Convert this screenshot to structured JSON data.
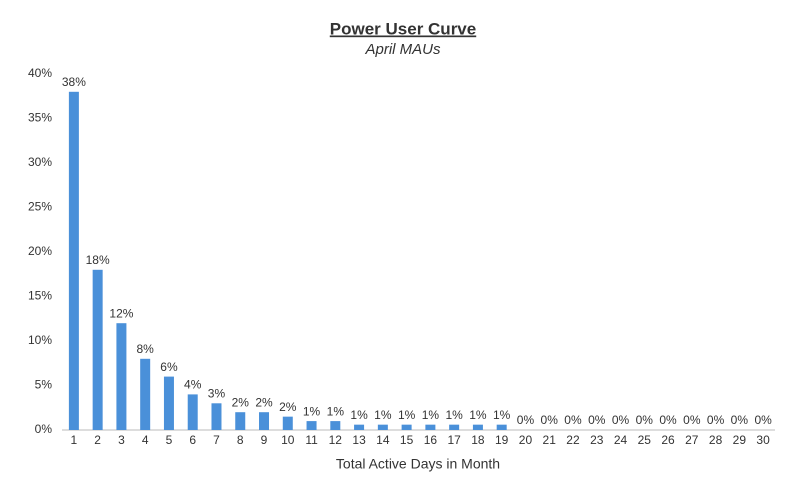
{
  "chart_data": {
    "type": "bar",
    "title": "Power User Curve",
    "subtitle": "April MAUs",
    "x_label": "Total Active Days in Month",
    "categories": [
      "1",
      "2",
      "3",
      "4",
      "5",
      "6",
      "7",
      "8",
      "9",
      "10",
      "11",
      "12",
      "13",
      "14",
      "15",
      "16",
      "17",
      "18",
      "19",
      "20",
      "21",
      "22",
      "23",
      "24",
      "25",
      "26",
      "27",
      "28",
      "29",
      "30"
    ],
    "values": [
      38,
      18,
      12,
      8,
      6,
      4,
      3,
      2,
      2,
      1.5,
      1,
      1,
      0.6,
      0.6,
      0.6,
      0.6,
      0.6,
      0.6,
      0.6,
      0,
      0,
      0,
      0,
      0,
      0,
      0,
      0,
      0,
      0,
      0
    ],
    "value_labels": [
      "38%",
      "18%",
      "12%",
      "8%",
      "6%",
      "4%",
      "3%",
      "2%",
      "2%",
      "2%",
      "1%",
      "1%",
      "1%",
      "1%",
      "1%",
      "1%",
      "1%",
      "1%",
      "1%",
      "0%",
      "0%",
      "0%",
      "0%",
      "0%",
      "0%",
      "0%",
      "0%",
      "0%",
      "0%",
      "0%"
    ],
    "color": "#4a90d9",
    "ylim": [
      0,
      40
    ],
    "yticks": [
      {
        "value": 0,
        "label": "0%"
      },
      {
        "value": 5,
        "label": "5%"
      },
      {
        "value": 10,
        "label": "10%"
      },
      {
        "value": 15,
        "label": "15%"
      },
      {
        "value": 20,
        "label": "20%"
      },
      {
        "value": 25,
        "label": "25%"
      },
      {
        "value": 30,
        "label": "30%"
      },
      {
        "value": 35,
        "label": "35%"
      },
      {
        "value": 40,
        "label": "40%"
      }
    ],
    "grid": false
  }
}
